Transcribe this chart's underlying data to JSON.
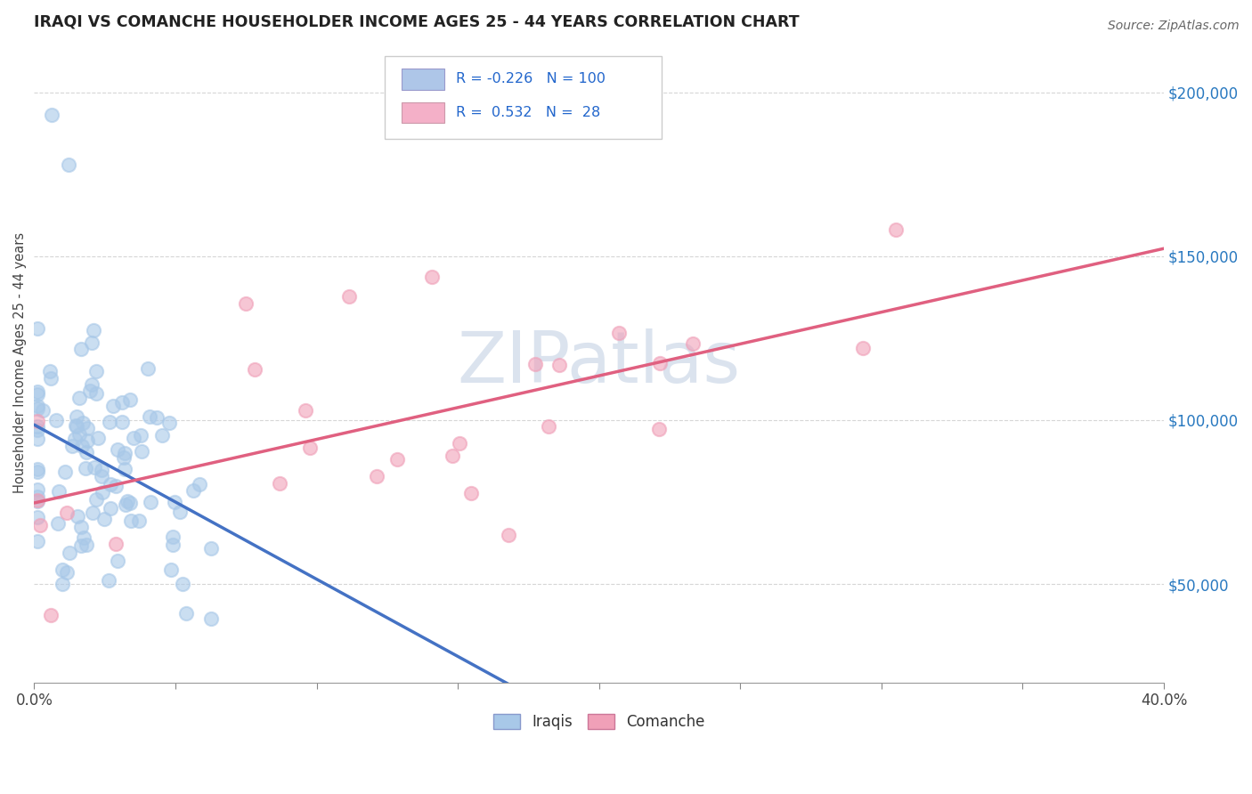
{
  "title": "IRAQI VS COMANCHE HOUSEHOLDER INCOME AGES 25 - 44 YEARS CORRELATION CHART",
  "source": "Source: ZipAtlas.com",
  "ylabel_label": "Householder Income Ages 25 - 44 years",
  "xlim": [
    0.0,
    0.4
  ],
  "ylim": [
    20000,
    215000
  ],
  "ytick_positions": [
    50000,
    100000,
    150000,
    200000
  ],
  "ytick_labels": [
    "$50,000",
    "$100,000",
    "$150,000",
    "$200,000"
  ],
  "xtick_positions": [
    0.0,
    0.05,
    0.1,
    0.15,
    0.2,
    0.25,
    0.3,
    0.35,
    0.4
  ],
  "xtick_labels": [
    "0.0%",
    "",
    "",
    "",
    "",
    "",
    "",
    "",
    "40.0%"
  ],
  "iraqis_scatter_color": "#a8c8e8",
  "comanche_scatter_color": "#f0a0b8",
  "iraqis_line_color": "#4472c4",
  "comanche_line_color": "#e06080",
  "iraqis_dashed_color": "#a0b8d0",
  "background_color": "#ffffff",
  "grid_color": "#cccccc",
  "legend_box_color_iraqis": "#aec6e8",
  "legend_box_color_comanche": "#f4b0c8",
  "watermark_color": "#ccd8e8",
  "R_iraqis": -0.226,
  "N_iraqis": 100,
  "R_comanche": 0.532,
  "N_comanche": 28
}
